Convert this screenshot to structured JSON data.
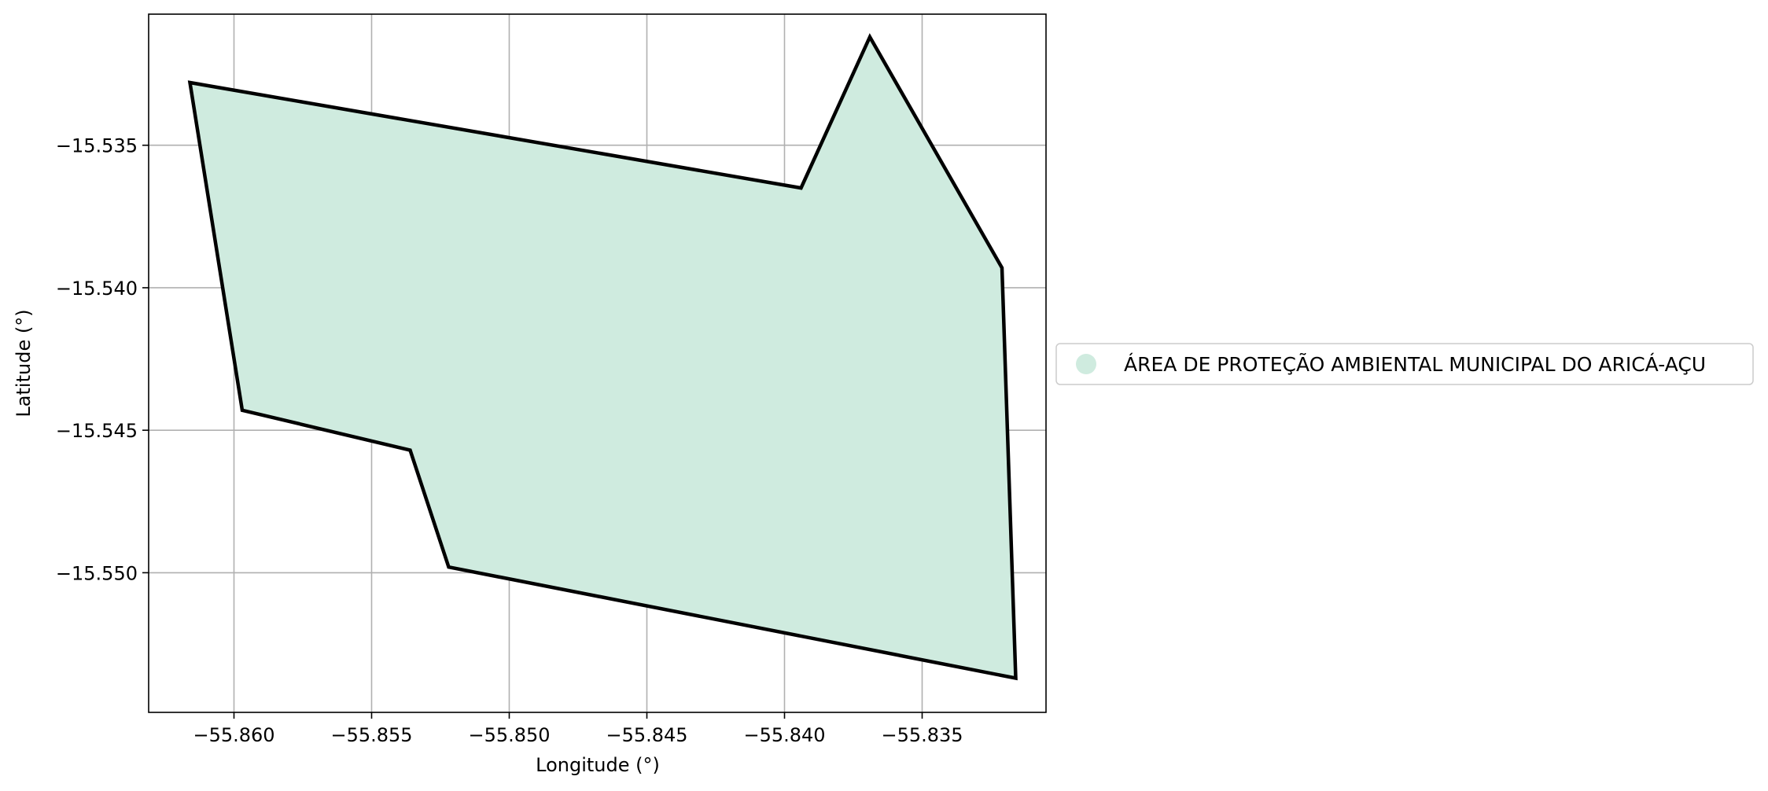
{
  "chart_data": {
    "type": "map-polygon",
    "xlabel": "Longitude (°)",
    "ylabel": "Latitude (°)",
    "xlim": [
      -55.8631,
      -55.8305
    ],
    "ylim": [
      -15.5549,
      -15.5304
    ],
    "grid": true,
    "legend_position": "right-center",
    "x_ticks": [
      {
        "value": -55.86,
        "label": "−55.860"
      },
      {
        "value": -55.855,
        "label": "−55.855"
      },
      {
        "value": -55.85,
        "label": "−55.850"
      },
      {
        "value": -55.845,
        "label": "−55.845"
      },
      {
        "value": -55.84,
        "label": "−55.840"
      },
      {
        "value": -55.835,
        "label": "−55.835"
      }
    ],
    "y_ticks": [
      {
        "value": -15.535,
        "label": "−15.535"
      },
      {
        "value": -15.54,
        "label": "−15.540"
      },
      {
        "value": -15.545,
        "label": "−15.545"
      },
      {
        "value": -15.55,
        "label": "−15.550"
      }
    ],
    "series": [
      {
        "name": "ÁREA DE PROTEÇÃO AMBIENTAL MUNICIPAL DO ARICÁ-AÇU",
        "fill_color": "#cfebdf",
        "edge_color": "#000000",
        "polygon": [
          [
            -55.8616,
            -15.5328
          ],
          [
            -55.8394,
            -15.5365
          ],
          [
            -55.8369,
            -15.5312
          ],
          [
            -55.8321,
            -15.5393
          ],
          [
            -55.8316,
            -15.5537
          ],
          [
            -55.8522,
            -15.5498
          ],
          [
            -55.8536,
            -15.5457
          ],
          [
            -55.8597,
            -15.5443
          ]
        ]
      }
    ]
  }
}
